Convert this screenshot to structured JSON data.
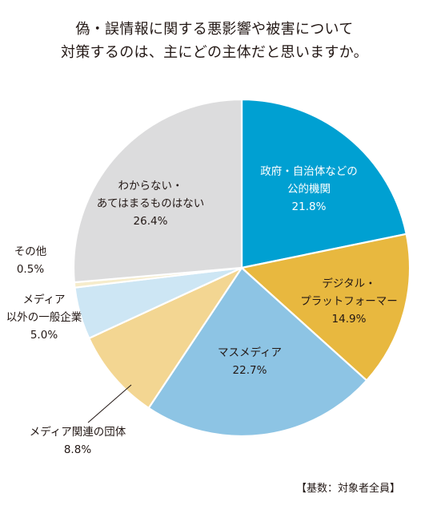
{
  "chart_data": {
    "type": "pie",
    "title": [
      "偽・誤情報に関する悪影響や被害について",
      "対策するのは、主にどの主体だと思いますか。"
    ],
    "slices": [
      {
        "label": [
          "政府・自治体などの",
          "公的機関"
        ],
        "value": 21.8,
        "value_text": "21.8%",
        "color": "#00a0d2",
        "text_color": "#ffffff",
        "label_pos": "inside"
      },
      {
        "label": [
          "デジタル・",
          "プラットフォーマー"
        ],
        "value": 14.9,
        "value_text": "14.9%",
        "color": "#e8b83f",
        "text_color": "#231815",
        "label_pos": "inside"
      },
      {
        "label": [
          "マスメディア"
        ],
        "value": 22.7,
        "value_text": "22.7%",
        "color": "#8dc4e4",
        "text_color": "#231815",
        "label_pos": "inside"
      },
      {
        "label": [
          "メディア関連の団体"
        ],
        "value": 8.8,
        "value_text": "8.8%",
        "color": "#f3d692",
        "text_color": "#231815",
        "label_pos": "outside"
      },
      {
        "label": [
          "メディア",
          "以外の一般企業"
        ],
        "value": 5.0,
        "value_text": "5.0%",
        "color": "#cde6f4",
        "text_color": "#231815",
        "label_pos": "outside"
      },
      {
        "label": [
          "その他"
        ],
        "value": 0.5,
        "value_text": "0.5%",
        "color": "#f6eccb",
        "text_color": "#231815",
        "label_pos": "outside"
      },
      {
        "label": [
          "わからない・",
          "あてはまるものはない"
        ],
        "value": 26.4,
        "value_text": "26.4%",
        "color": "#dcdcdd",
        "text_color": "#231815",
        "label_pos": "inside"
      }
    ],
    "start_angle": "12 o'clock",
    "direction": "clockwise",
    "legend": "none",
    "footnote": "【基数：対象者全員】"
  }
}
